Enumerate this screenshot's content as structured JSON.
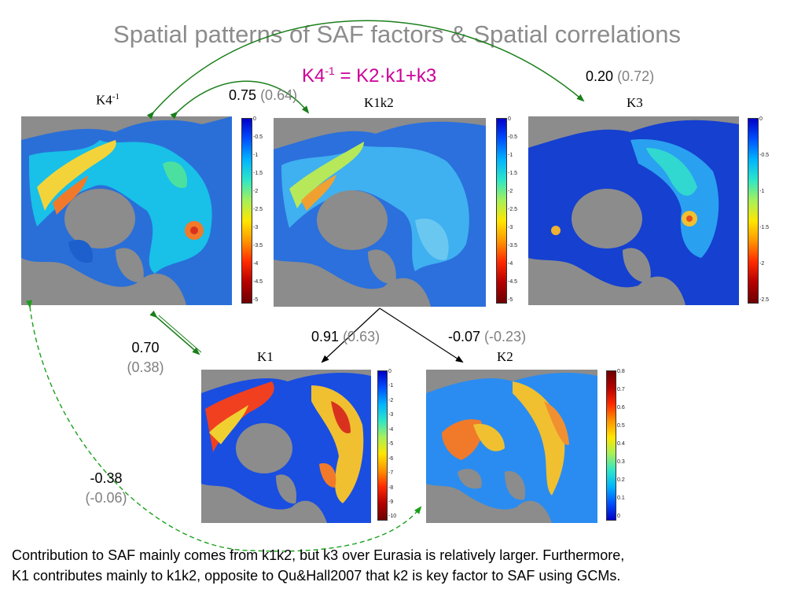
{
  "title": "Spatial patterns of SAF factors & Spatial correlations",
  "formula": {
    "lhs": "K4",
    "lhs_sup": "-1",
    "rhs": " = K2·k1+k3"
  },
  "maps": {
    "k4": {
      "label": "K4",
      "label_sup": "-1",
      "ticks": [
        "0",
        "-0.5",
        "-1",
        "-1.5",
        "-2",
        "-2.5",
        "-3",
        "-3.5",
        "-4",
        "-4.5",
        "-5"
      ]
    },
    "k1k2": {
      "label": "K1k2",
      "ticks": [
        "0",
        "-0.5",
        "-1",
        "-1.5",
        "-2",
        "-2.5",
        "-3",
        "-3.5",
        "-4",
        "-4.5",
        "-5"
      ]
    },
    "k3": {
      "label": "K3",
      "ticks": [
        "0",
        "-0.5",
        "-1",
        "-1.5",
        "-2",
        "-2.5"
      ]
    },
    "k1": {
      "label": "K1",
      "ticks": [
        "0",
        "-1",
        "-2",
        "-3",
        "-4",
        "-5",
        "-6",
        "-7",
        "-8",
        "-9",
        "-10"
      ]
    },
    "k2": {
      "label": "K2",
      "ticks": [
        "0.8",
        "0.7",
        "0.6",
        "0.5",
        "0.4",
        "0.3",
        "0.2",
        "0.1",
        "0"
      ]
    }
  },
  "correlations": {
    "k4_k3": {
      "value": "0.20",
      "alt": "(0.72)"
    },
    "k4_k1k2": {
      "value": "0.75",
      "alt": "(0.64)"
    },
    "k1k2_k1": {
      "value": "0.91",
      "alt": "(0.63)"
    },
    "k1k2_k2": {
      "value": "-0.07",
      "alt": "(-0.23)"
    },
    "k4_k1": {
      "value": "0.70",
      "alt": "(0.38)"
    },
    "k4_k2": {
      "value": "-0.38",
      "alt": "(-0.06)"
    }
  },
  "caption": {
    "line1": "Contribution to SAF mainly comes from k1k2, but k3 over Eurasia is relatively larger. Furthermore,",
    "line2": "K1 contributes mainly to k1k2, opposite to Qu&Hall2007 that k2 is key factor to SAF using GCMs."
  },
  "colors": {
    "title": "#8c8c8c",
    "formula": "#cc0099",
    "arrow_solid": "#1a7f1a",
    "arrow_dashed": "#1a9f1a",
    "land_gray": "#8c8c8c"
  }
}
